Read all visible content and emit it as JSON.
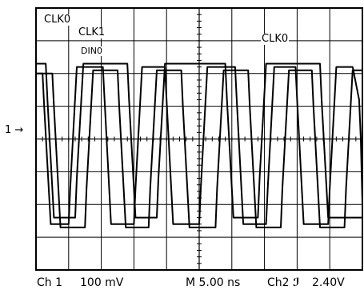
{
  "chart_data": {
    "type": "line",
    "title": "",
    "xlabel": "",
    "ylabel": "",
    "grid": true,
    "xdiv": 10,
    "ydiv": 8,
    "xlim": [
      0,
      10
    ],
    "ylim": [
      0,
      8
    ],
    "series": [
      {
        "name": "CLK0",
        "x": [
          0.0,
          0.2,
          0.25,
          0.45,
          0.8,
          1.0,
          1.05,
          1.25,
          1.85,
          2.05,
          2.1,
          2.3,
          2.8,
          3.0,
          3.05,
          3.25,
          3.75,
          3.95,
          4.0,
          4.2,
          4.8,
          5.0,
          5.05,
          5.25,
          5.9,
          6.1,
          6.15,
          6.35,
          6.85,
          7.05,
          7.1,
          7.3,
          7.75,
          7.95,
          8.0,
          8.2,
          8.75,
          8.95,
          9.0,
          9.2,
          9.7,
          9.9,
          9.95,
          10.0
        ],
        "y": [
          6.0,
          6.0,
          5.0,
          1.4,
          1.4,
          1.4,
          2.5,
          6.2,
          6.2,
          6.2,
          5.2,
          1.4,
          1.4,
          1.4,
          2.5,
          6.2,
          6.2,
          6.2,
          5.2,
          1.4,
          1.4,
          1.4,
          2.5,
          6.2,
          6.2,
          6.2,
          5.2,
          1.4,
          1.4,
          1.4,
          2.5,
          6.2,
          6.2,
          6.2,
          5.2,
          1.4,
          1.4,
          1.4,
          2.5,
          6.2,
          6.2,
          5.2,
          4.0,
          2.0
        ]
      },
      {
        "name": "CLK1",
        "x": [
          0.0,
          0.5,
          0.55,
          0.75,
          1.3,
          1.5,
          1.55,
          1.75,
          2.3,
          2.5,
          2.55,
          2.75,
          3.25,
          3.45,
          3.5,
          3.7,
          4.25,
          4.45,
          4.5,
          4.7,
          5.3,
          5.5,
          5.55,
          5.75,
          6.3,
          6.5,
          6.55,
          6.75,
          7.3,
          7.5,
          7.55,
          7.75,
          8.25,
          8.45,
          8.5,
          8.7,
          9.25,
          9.45,
          9.5,
          9.7,
          10.0
        ],
        "y": [
          6.0,
          6.0,
          5.0,
          1.3,
          1.3,
          1.3,
          2.5,
          6.1,
          6.1,
          6.1,
          5.0,
          1.3,
          1.3,
          1.3,
          2.5,
          6.1,
          6.1,
          6.1,
          5.0,
          1.3,
          1.3,
          1.3,
          2.5,
          6.1,
          6.1,
          6.1,
          5.0,
          1.3,
          1.3,
          1.3,
          2.5,
          6.1,
          6.1,
          6.1,
          5.0,
          1.3,
          1.3,
          1.3,
          2.5,
          6.1,
          6.1
        ]
      },
      {
        "name": "DIN0",
        "x": [
          0.0,
          0.3,
          0.35,
          0.55,
          1.0,
          1.2,
          1.25,
          1.45,
          2.6,
          2.8,
          2.85,
          3.05,
          3.5,
          3.7,
          3.75,
          3.95,
          5.6,
          5.8,
          5.85,
          6.05,
          6.6,
          6.8,
          6.85,
          7.05,
          8.5,
          8.7,
          8.75,
          8.95,
          10.0
        ],
        "y": [
          6.3,
          6.3,
          5.2,
          1.6,
          1.6,
          1.6,
          2.8,
          6.3,
          6.3,
          6.3,
          5.2,
          1.6,
          1.6,
          1.6,
          2.8,
          6.3,
          6.3,
          6.3,
          5.2,
          1.6,
          1.6,
          1.6,
          2.8,
          6.3,
          6.3,
          6.3,
          5.2,
          1.6,
          1.6
        ]
      }
    ]
  },
  "labels": {
    "clk0_top": "CLK0",
    "clk1": "CLK1",
    "din0": "DIN0",
    "clk0_right": "CLK0",
    "ch_marker": "1 →"
  },
  "status": {
    "channel": "Ch 1",
    "scale": "100 mV",
    "timebase": "M 5.00 ns",
    "trigger_source": "Ch2",
    "trigger_icon": "rising-edge-icon",
    "trigger_level": "2.40V"
  }
}
